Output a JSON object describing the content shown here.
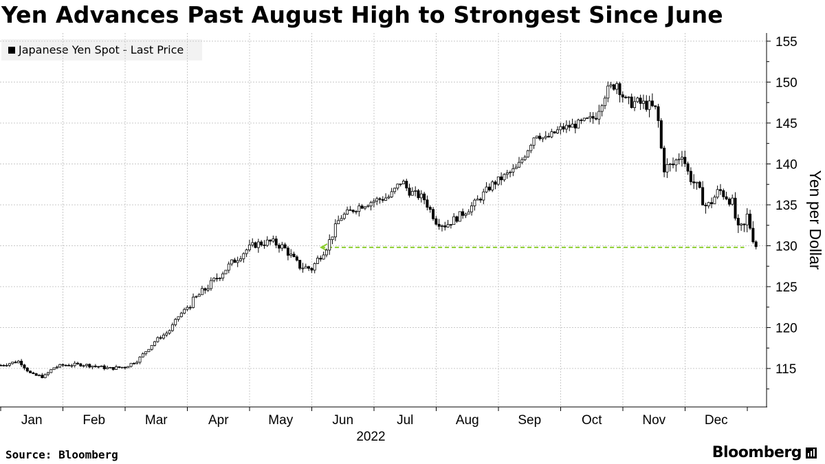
{
  "title": "Yen Advances Past August High to Strongest Since June",
  "legend": {
    "label": "Japanese Yen Spot - Last Price"
  },
  "source": "Source: Bloomberg",
  "brand": "Bloomberg",
  "colors": {
    "candle": "#000000",
    "reference_line": "#8ccf2f",
    "grid": "#c8c8c8"
  },
  "chart_data": {
    "type": "candlestick",
    "title": "Yen Advances Past August High to Strongest Since June",
    "series_name": "Japanese Yen Spot - Last Price",
    "ylabel": "Yen per Dollar",
    "xlabel": "2022",
    "y_ticks": [
      115,
      120,
      125,
      130,
      135,
      140,
      145,
      150,
      155
    ],
    "ylim": [
      110.3,
      156
    ],
    "x_tick_labels": [
      "Jan",
      "Feb",
      "Mar",
      "Apr",
      "May",
      "Jun",
      "Jul",
      "Aug",
      "Sep",
      "Oct",
      "Nov",
      "Dec"
    ],
    "grid": true,
    "legend_position": "top-left",
    "reference_line": {
      "value": 129.8,
      "from_month": 5.15,
      "to_month": 11.95,
      "style": "dashed"
    },
    "anchors": [
      [
        0.0,
        115.4
      ],
      [
        0.3,
        115.9
      ],
      [
        0.5,
        114.2
      ],
      [
        0.7,
        114.0
      ],
      [
        0.85,
        115.1
      ],
      [
        1.0,
        115.4
      ],
      [
        1.3,
        115.5
      ],
      [
        1.5,
        115.3
      ],
      [
        1.75,
        115.0
      ],
      [
        2.0,
        115.2
      ],
      [
        2.2,
        116.0
      ],
      [
        2.5,
        118.5
      ],
      [
        2.7,
        119.5
      ],
      [
        2.85,
        121.3
      ],
      [
        3.0,
        122.5
      ],
      [
        3.15,
        123.7
      ],
      [
        3.4,
        125.5
      ],
      [
        3.7,
        127.8
      ],
      [
        3.95,
        129.5
      ],
      [
        4.1,
        130.2
      ],
      [
        4.35,
        130.5
      ],
      [
        4.55,
        129.8
      ],
      [
        4.8,
        127.5
      ],
      [
        5.0,
        127.2
      ],
      [
        5.1,
        128.4
      ],
      [
        5.25,
        130.0
      ],
      [
        5.45,
        133.4
      ],
      [
        5.75,
        134.8
      ],
      [
        6.0,
        135.5
      ],
      [
        6.25,
        136.0
      ],
      [
        6.45,
        138.0
      ],
      [
        6.55,
        136.7
      ],
      [
        6.8,
        135.8
      ],
      [
        7.0,
        133.0
      ],
      [
        7.15,
        132.5
      ],
      [
        7.4,
        133.8
      ],
      [
        7.6,
        135.0
      ],
      [
        7.9,
        137.5
      ],
      [
        8.1,
        138.5
      ],
      [
        8.3,
        139.5
      ],
      [
        8.45,
        141.5
      ],
      [
        8.6,
        143.8
      ],
      [
        8.75,
        143.0
      ],
      [
        9.0,
        144.3
      ],
      [
        9.25,
        144.8
      ],
      [
        9.55,
        145.7
      ],
      [
        9.7,
        148.5
      ],
      [
        9.9,
        150.0
      ],
      [
        10.05,
        147.5
      ],
      [
        10.2,
        147.5
      ],
      [
        10.4,
        147.2
      ],
      [
        10.55,
        146.5
      ],
      [
        10.65,
        139.5
      ],
      [
        10.8,
        139.8
      ],
      [
        10.95,
        141.4
      ],
      [
        11.05,
        138.8
      ],
      [
        11.2,
        137.0
      ],
      [
        11.35,
        134.6
      ],
      [
        11.55,
        136.8
      ],
      [
        11.75,
        135.5
      ],
      [
        11.85,
        131.8
      ],
      [
        11.95,
        132.3
      ],
      [
        12.0,
        133.7
      ],
      [
        12.08,
        131.3
      ],
      [
        12.14,
        130.1
      ]
    ]
  }
}
